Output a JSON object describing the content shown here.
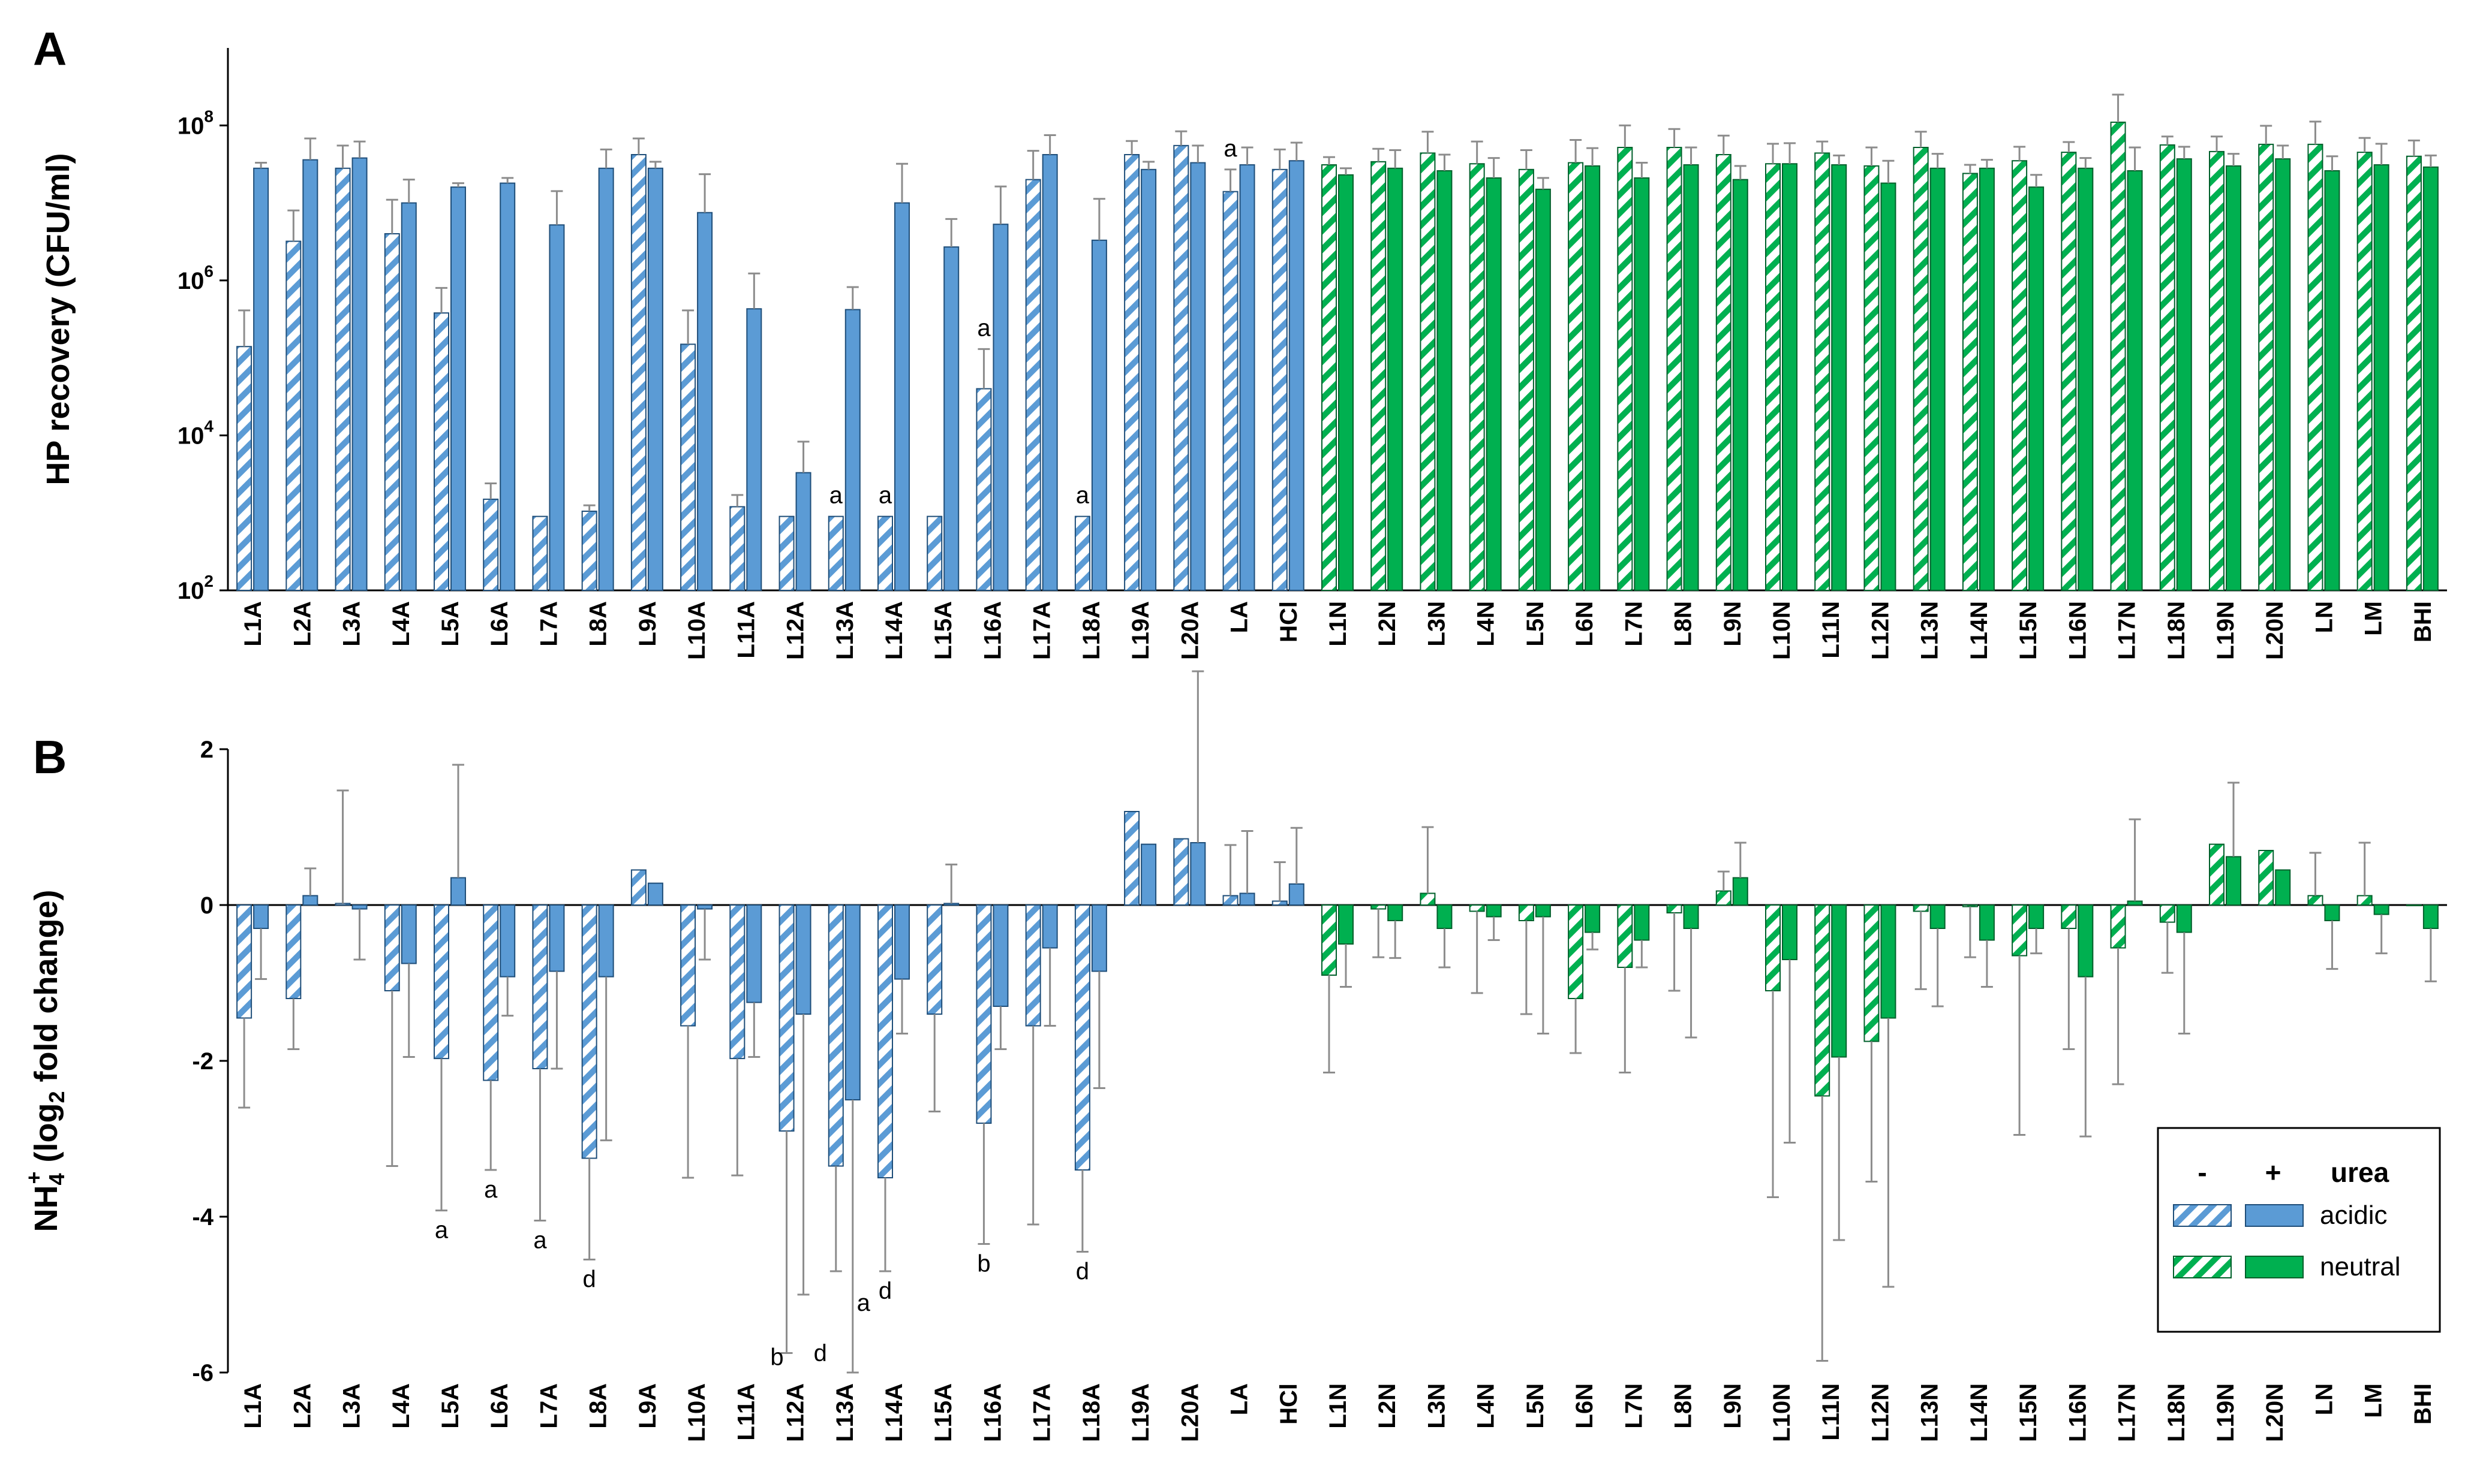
{
  "chart_data": [
    {
      "panel": "A",
      "type": "bar",
      "ylabel": "HP recovery (CFU/ml)",
      "yscale": "log10",
      "ylim": [
        100,
        1000000000
      ],
      "yticks": [
        {
          "value": 100,
          "base": "10",
          "exp": "2"
        },
        {
          "value": 10000,
          "base": "10",
          "exp": "4"
        },
        {
          "value": 1000000,
          "base": "10",
          "exp": "6"
        },
        {
          "value": 100000000,
          "base": "10",
          "exp": "8"
        }
      ],
      "categories": [
        "L1A",
        "L2A",
        "L3A",
        "L4A",
        "L5A",
        "L6A",
        "L7A",
        "L8A",
        "L9A",
        "L10A",
        "L11A",
        "L12A",
        "L13A",
        "L14A",
        "L15A",
        "L16A",
        "L17A",
        "L18A",
        "L19A",
        "L20A",
        "LA",
        "HCl",
        "L1N",
        "L2N",
        "L3N",
        "L4N",
        "L5N",
        "L6N",
        "L7N",
        "L8N",
        "L9N",
        "L10N",
        "L11N",
        "L12N",
        "L13N",
        "L14N",
        "L15N",
        "L16N",
        "L17N",
        "L18N",
        "L19N",
        "L20N",
        "LN",
        "LM",
        "BHI"
      ],
      "groups": [
        "acidic",
        "acidic",
        "acidic",
        "acidic",
        "acidic",
        "acidic",
        "acidic",
        "acidic",
        "acidic",
        "acidic",
        "acidic",
        "acidic",
        "acidic",
        "acidic",
        "acidic",
        "acidic",
        "acidic",
        "acidic",
        "acidic",
        "acidic",
        "acidic",
        "acidic",
        "neutral",
        "neutral",
        "neutral",
        "neutral",
        "neutral",
        "neutral",
        "neutral",
        "neutral",
        "neutral",
        "neutral",
        "neutral",
        "neutral",
        "neutral",
        "neutral",
        "neutral",
        "neutral",
        "neutral",
        "neutral",
        "neutral",
        "neutral",
        "neutral",
        "neutral",
        "neutral"
      ],
      "series": [
        {
          "name": "- urea",
          "values": [
            140000,
            3200000,
            28000000,
            4000000,
            380000,
            1500,
            900,
            1050,
            42000000,
            150000,
            1200,
            900,
            900,
            900,
            900,
            40000,
            20000000,
            900,
            42000000,
            55000000,
            14000000,
            27000000,
            31000000,
            34000000,
            44000000,
            32000000,
            27000000,
            33000000,
            52000000,
            52000000,
            42000000,
            32000000,
            44000000,
            30000000,
            52000000,
            24000000,
            35000000,
            45000000,
            110000000,
            56000000,
            46000000,
            57000000,
            57000000,
            45000000,
            40000000
          ],
          "errors": [
            270000,
            4800000,
            27000000,
            7000000,
            420000,
            900,
            0,
            200,
            26000000,
            260000,
            500,
            0,
            0,
            0,
            0,
            90000,
            27000000,
            0,
            21000000,
            29000000,
            13000000,
            22000000,
            8000000,
            16000000,
            39000000,
            30000000,
            21000000,
            32000000,
            48000000,
            38000000,
            32000000,
            26000000,
            18000000,
            22000000,
            31000000,
            7000000,
            18000000,
            16000000,
            140000000,
            16000000,
            26000000,
            42000000,
            55000000,
            24000000,
            24000000
          ]
        },
        {
          "name": "+ urea",
          "values": [
            28000000,
            36000000,
            38000000,
            10000000,
            16000000,
            18000000,
            5200000,
            28000000,
            28000000,
            7500000,
            430000,
            3300,
            420000,
            10000000,
            2700000,
            5300000,
            42000000,
            3300000,
            27000000,
            33000000,
            31000000,
            35000000,
            23000000,
            28000000,
            26000000,
            21000000,
            15000000,
            30000000,
            21000000,
            31000000,
            20000000,
            32000000,
            31000000,
            18000000,
            28000000,
            28000000,
            16000000,
            28000000,
            26000000,
            37000000,
            30000000,
            37000000,
            26000000,
            31000000,
            29000000
          ],
          "errors": [
            5000000,
            32000000,
            24000000,
            10000000,
            2000000,
            3000000,
            9000000,
            21000000,
            6000000,
            16000000,
            800000,
            5000,
            400000,
            22000000,
            3500000,
            11000000,
            33000000,
            8000000,
            7000000,
            22000000,
            21000000,
            25000000,
            5000000,
            20000000,
            16000000,
            17000000,
            6000000,
            21000000,
            12000000,
            21000000,
            10000000,
            27000000,
            10000000,
            17000000,
            15000000,
            8000000,
            7000000,
            10000000,
            26000000,
            16000000,
            13000000,
            18000000,
            14000000,
            27000000,
            12000000
          ]
        }
      ],
      "annotations": [
        {
          "category": "L13A",
          "series": "- urea",
          "text": "a"
        },
        {
          "category": "L14A",
          "series": "- urea",
          "text": "a"
        },
        {
          "category": "L16A",
          "series": "- urea",
          "text": "a"
        },
        {
          "category": "L18A",
          "series": "- urea",
          "text": "a"
        },
        {
          "category": "LA",
          "series": "- urea",
          "text": "a"
        }
      ]
    },
    {
      "panel": "B",
      "type": "bar",
      "ylabel_main": "NH",
      "ylabel_sub": "4",
      "ylabel_sup": "+",
      "ylabel_rest_a": " (log",
      "ylabel_sub2": "2",
      "ylabel_rest_b": " fold change)",
      "ylim": [
        -6,
        2
      ],
      "yticks": [
        "-6",
        "-4",
        "-2",
        "0",
        "2"
      ],
      "categories": [
        "L1A",
        "L2A",
        "L3A",
        "L4A",
        "L5A",
        "L6A",
        "L7A",
        "L8A",
        "L9A",
        "L10A",
        "L11A",
        "L12A",
        "L13A",
        "L14A",
        "L15A",
        "L16A",
        "L17A",
        "L18A",
        "L19A",
        "L20A",
        "LA",
        "HCl",
        "L1N",
        "L2N",
        "L3N",
        "L4N",
        "L5N",
        "L6N",
        "L7N",
        "L8N",
        "L9N",
        "L10N",
        "L11N",
        "L12N",
        "L13N",
        "L14N",
        "L15N",
        "L16N",
        "L17N",
        "L18N",
        "L19N",
        "L20N",
        "LN",
        "LM",
        "BHI"
      ],
      "series": [
        {
          "name": "- urea",
          "values": [
            -1.45,
            -1.2,
            0.02,
            -1.1,
            -1.97,
            -2.25,
            -2.1,
            -3.25,
            0.45,
            -1.55,
            -1.97,
            -2.9,
            -3.35,
            -3.5,
            -1.4,
            -2.8,
            -1.55,
            -3.4,
            1.2,
            0.85,
            0.12,
            0.05,
            -0.9,
            -0.05,
            0.15,
            -0.08,
            -0.2,
            -1.2,
            -0.8,
            -0.1,
            0.18,
            -1.1,
            -2.45,
            -1.75,
            -0.08,
            -0.02,
            -0.65,
            -0.3,
            -0.55,
            -0.22,
            0.78,
            0.7,
            0.12,
            0.12,
            0.0
          ],
          "errors": [
            1.15,
            0.65,
            1.45,
            2.25,
            1.95,
            1.15,
            1.95,
            1.3,
            0.0,
            1.95,
            1.5,
            2.85,
            1.35,
            1.2,
            1.25,
            1.55,
            2.55,
            1.05,
            0.0,
            0.0,
            0.65,
            0.5,
            1.25,
            0.62,
            0.85,
            1.05,
            1.2,
            0.7,
            1.35,
            1.0,
            0.25,
            2.65,
            3.4,
            1.8,
            1.0,
            0.65,
            2.3,
            1.55,
            1.75,
            0.65,
            0.0,
            0.0,
            0.55,
            0.68,
            0.0
          ]
        },
        {
          "name": "+ urea",
          "values": [
            -0.3,
            0.12,
            -0.05,
            -0.75,
            0.35,
            -0.92,
            -0.85,
            -0.92,
            0.28,
            -0.05,
            -1.25,
            -1.4,
            -2.5,
            -0.95,
            0.02,
            -1.3,
            -0.55,
            -0.85,
            0.78,
            0.8,
            0.15,
            0.27,
            -0.5,
            -0.2,
            -0.3,
            -0.15,
            -0.15,
            -0.35,
            -0.45,
            -0.3,
            0.35,
            -0.7,
            -1.95,
            -1.45,
            -0.3,
            -0.45,
            -0.3,
            -0.92,
            0.05,
            -0.35,
            0.62,
            0.45,
            -0.2,
            -0.12,
            -0.3
          ],
          "errors": [
            0.65,
            0.35,
            0.65,
            1.2,
            1.45,
            0.5,
            1.25,
            2.1,
            0.0,
            0.65,
            0.7,
            3.6,
            3.5,
            0.7,
            0.5,
            0.55,
            1.0,
            1.5,
            0.0,
            2.2,
            0.8,
            0.72,
            0.55,
            0.48,
            0.5,
            0.3,
            1.5,
            0.22,
            0.35,
            1.4,
            0.45,
            2.35,
            2.35,
            3.45,
            1.0,
            0.6,
            0.32,
            2.05,
            1.05,
            1.3,
            0.95,
            0.0,
            0.62,
            0.5,
            0.68
          ]
        }
      ],
      "annotations": [
        {
          "category": "L5A",
          "text": "a"
        },
        {
          "category": "L6A",
          "text": "a"
        },
        {
          "category": "L7A",
          "text": "a"
        },
        {
          "category": "L8A",
          "text": "d"
        },
        {
          "category": "L12A",
          "text": "b"
        },
        {
          "category": "L13A",
          "text": "d"
        },
        {
          "category": "L13A",
          "text": "a"
        },
        {
          "category": "L14A",
          "text": "d"
        },
        {
          "category": "L16A",
          "text": "b"
        },
        {
          "category": "L18A",
          "text": "d"
        }
      ],
      "legend": {
        "minus": "-",
        "plus": "+",
        "urea": "urea",
        "acidic": "acidic",
        "neutral": "neutral"
      }
    }
  ],
  "colors": {
    "blue": "#5b9bd5",
    "blue_edge": "#1f4e79",
    "green": "#00b050",
    "green_edge": "#00602b",
    "error": "#8c8c8c"
  }
}
